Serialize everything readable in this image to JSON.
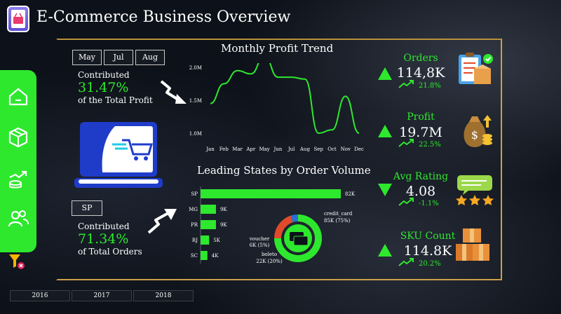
{
  "header": {
    "title": "E-Commerce Business Overview",
    "logo_icon": "shopping-basket-icon"
  },
  "sidebar": {
    "items": [
      "home-icon",
      "box-icon",
      "growth-coins-icon",
      "users-icon"
    ],
    "filter_icon": "filter-clear-icon"
  },
  "month_filter": {
    "buttons": [
      "May",
      "Jul",
      "Aug"
    ]
  },
  "profit_contribution": {
    "label": "Contributed",
    "value": "31.47%",
    "caption": "of the Total Profit"
  },
  "state_filter": {
    "button": "SP"
  },
  "order_contribution": {
    "label": "Contributed",
    "value": "71.34%",
    "caption": "of Total Orders"
  },
  "year_tabs": [
    "2016",
    "2017",
    "2018"
  ],
  "colors": {
    "accent": "#2ee82e",
    "gold": "#c9a14a",
    "background": "#0d1119"
  },
  "kpis": [
    {
      "title": "Orders",
      "value": "114,8K",
      "change": "21.8%",
      "direction": "up",
      "icon": "clipboard-box-icon"
    },
    {
      "title": "Profit",
      "value": "19.7M",
      "change": "22.5%",
      "direction": "up",
      "icon": "money-bag-icon"
    },
    {
      "title": "Avg Rating",
      "value": "4.08",
      "change": "-1.1%",
      "direction": "down",
      "icon": "rating-stars-icon"
    },
    {
      "title": "SKU Count",
      "value": "114.8K",
      "change": "20.2%",
      "direction": "up",
      "icon": "boxes-icon"
    }
  ],
  "chart_data": [
    {
      "type": "line",
      "title": "Monthly Profit Trend",
      "x": [
        "Jan",
        "Feb",
        "Mar",
        "Apr",
        "May",
        "Jun",
        "Jul",
        "Aug",
        "Sep",
        "Oct",
        "Nov",
        "Dec"
      ],
      "y_ticks": [
        "1.0M",
        "1.5M",
        "2.0M"
      ],
      "ylim": [
        1.0,
        2.0
      ],
      "series": [
        {
          "values": [
            1.45,
            1.75,
            1.95,
            1.9,
            2.17,
            1.85,
            1.85,
            1.82,
            1.0,
            1.05,
            1.56,
            1.0
          ]
        }
      ]
    },
    {
      "type": "bar",
      "title": "Leading States by Order Volume",
      "categories": [
        "SP",
        "MG",
        "PR",
        "RJ",
        "SC"
      ],
      "values": [
        82,
        9,
        9,
        5,
        4
      ],
      "value_labels": [
        "82K",
        "9K",
        "9K",
        "5K",
        "4K"
      ]
    },
    {
      "type": "pie",
      "slices": [
        {
          "label": "credit_card",
          "value_label": "85K (75%)",
          "value": 75,
          "color": "#2ee82e"
        },
        {
          "label": "boleto",
          "value_label": "22K (20%)",
          "value": 20,
          "color": "#e04a2a"
        },
        {
          "label": "voucher",
          "value_label": "6K (5%)",
          "value": 5,
          "color": "#2a6fd6"
        }
      ]
    }
  ]
}
